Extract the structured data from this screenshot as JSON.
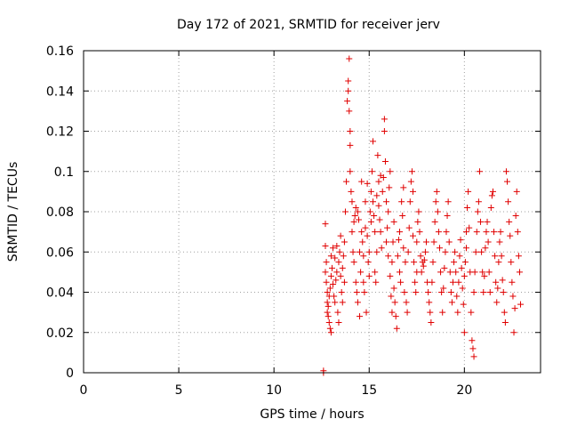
{
  "chart_data": {
    "type": "scatter",
    "title": "Day 172 of 2021, SRMTID for receiver jerv",
    "xlabel": "GPS time / hours",
    "ylabel": "SRMTID / TECUs",
    "xlim": [
      0,
      24
    ],
    "ylim": [
      0,
      0.16
    ],
    "x_ticks": [
      0,
      5,
      10,
      15,
      20
    ],
    "x_tick_labels": [
      "0",
      "5",
      "10",
      "15",
      "20"
    ],
    "y_ticks": [
      0,
      0.02,
      0.04,
      0.06,
      0.08,
      0.1,
      0.12,
      0.14,
      0.16
    ],
    "y_tick_labels": [
      "0",
      "0.02",
      "0.04",
      "0.06",
      "0.08",
      "0.1",
      "0.12",
      "0.14",
      "0.16"
    ],
    "grid": true,
    "marker": "plus",
    "color": "#e00000",
    "series": [
      {
        "points": [
          [
            12.6,
            0.0
          ],
          [
            12.6,
            0.001
          ],
          [
            12.7,
            0.074
          ],
          [
            12.7,
            0.063
          ],
          [
            12.7,
            0.05
          ],
          [
            12.75,
            0.055
          ],
          [
            12.75,
            0.045
          ],
          [
            12.8,
            0.04
          ],
          [
            12.8,
            0.035
          ],
          [
            12.8,
            0.03
          ],
          [
            12.85,
            0.028
          ],
          [
            12.85,
            0.033
          ],
          [
            12.9,
            0.025
          ],
          [
            12.9,
            0.038
          ],
          [
            12.95,
            0.022
          ],
          [
            12.95,
            0.042
          ],
          [
            13.0,
            0.02
          ],
          [
            13.0,
            0.048
          ],
          [
            13.0,
            0.058
          ],
          [
            13.05,
            0.052
          ],
          [
            13.1,
            0.062
          ],
          [
            13.1,
            0.044
          ],
          [
            13.15,
            0.038
          ],
          [
            13.2,
            0.035
          ],
          [
            13.2,
            0.057
          ],
          [
            13.25,
            0.046
          ],
          [
            13.3,
            0.05
          ],
          [
            13.3,
            0.063
          ],
          [
            13.35,
            0.03
          ],
          [
            13.4,
            0.025
          ],
          [
            13.4,
            0.055
          ],
          [
            13.45,
            0.06
          ],
          [
            13.5,
            0.068
          ],
          [
            13.5,
            0.048
          ],
          [
            13.55,
            0.04
          ],
          [
            13.6,
            0.035
          ],
          [
            13.6,
            0.052
          ],
          [
            13.65,
            0.058
          ],
          [
            13.7,
            0.045
          ],
          [
            13.7,
            0.065
          ],
          [
            13.75,
            0.08
          ],
          [
            13.8,
            0.095
          ],
          [
            13.85,
            0.135
          ],
          [
            13.9,
            0.14
          ],
          [
            13.9,
            0.145
          ],
          [
            13.95,
            0.156
          ],
          [
            13.95,
            0.13
          ],
          [
            14.0,
            0.12
          ],
          [
            14.0,
            0.113
          ],
          [
            14.0,
            0.1
          ],
          [
            14.05,
            0.09
          ],
          [
            14.1,
            0.085
          ],
          [
            14.1,
            0.07
          ],
          [
            14.15,
            0.06
          ],
          [
            14.2,
            0.055
          ],
          [
            14.2,
            0.075
          ],
          [
            14.25,
            0.078
          ],
          [
            14.3,
            0.082
          ],
          [
            14.3,
            0.045
          ],
          [
            14.35,
            0.04
          ],
          [
            14.4,
            0.035
          ],
          [
            14.4,
            0.08
          ],
          [
            14.45,
            0.076
          ],
          [
            14.5,
            0.028
          ],
          [
            14.5,
            0.06
          ],
          [
            14.55,
            0.05
          ],
          [
            14.6,
            0.07
          ],
          [
            14.6,
            0.095
          ],
          [
            14.65,
            0.065
          ],
          [
            14.7,
            0.058
          ],
          [
            14.7,
            0.045
          ],
          [
            14.75,
            0.04
          ],
          [
            14.8,
            0.085
          ],
          [
            14.8,
            0.072
          ],
          [
            14.85,
            0.03
          ],
          [
            14.9,
            0.094
          ],
          [
            14.9,
            0.068
          ],
          [
            14.95,
            0.055
          ],
          [
            15.0,
            0.06
          ],
          [
            15.0,
            0.048
          ],
          [
            15.05,
            0.08
          ],
          [
            15.1,
            0.075
          ],
          [
            15.1,
            0.09
          ],
          [
            15.15,
            0.1
          ],
          [
            15.2,
            0.115
          ],
          [
            15.2,
            0.085
          ],
          [
            15.25,
            0.078
          ],
          [
            15.3,
            0.07
          ],
          [
            15.3,
            0.05
          ],
          [
            15.35,
            0.045
          ],
          [
            15.4,
            0.088
          ],
          [
            15.4,
            0.06
          ],
          [
            15.45,
            0.108
          ],
          [
            15.5,
            0.095
          ],
          [
            15.5,
            0.083
          ],
          [
            15.55,
            0.076
          ],
          [
            15.6,
            0.07
          ],
          [
            15.6,
            0.098
          ],
          [
            15.65,
            0.062
          ],
          [
            15.7,
            0.09
          ],
          [
            15.75,
            0.097
          ],
          [
            15.8,
            0.12
          ],
          [
            15.8,
            0.126
          ],
          [
            15.85,
            0.105
          ],
          [
            15.9,
            0.085
          ],
          [
            15.9,
            0.065
          ],
          [
            15.95,
            0.072
          ],
          [
            16.0,
            0.08
          ],
          [
            16.0,
            0.058
          ],
          [
            16.05,
            0.092
          ],
          [
            16.1,
            0.1
          ],
          [
            16.1,
            0.048
          ],
          [
            16.15,
            0.038
          ],
          [
            16.2,
            0.03
          ],
          [
            16.2,
            0.055
          ],
          [
            16.25,
            0.065
          ],
          [
            16.3,
            0.075
          ],
          [
            16.3,
            0.042
          ],
          [
            16.35,
            0.035
          ],
          [
            16.4,
            0.028
          ],
          [
            16.45,
            0.022
          ],
          [
            16.5,
            0.058
          ],
          [
            16.55,
            0.066
          ],
          [
            16.6,
            0.07
          ],
          [
            16.6,
            0.05
          ],
          [
            16.65,
            0.045
          ],
          [
            16.7,
            0.085
          ],
          [
            16.75,
            0.078
          ],
          [
            16.8,
            0.092
          ],
          [
            16.8,
            0.062
          ],
          [
            16.85,
            0.04
          ],
          [
            16.9,
            0.055
          ],
          [
            16.95,
            0.035
          ],
          [
            17.0,
            0.03
          ],
          [
            17.05,
            0.06
          ],
          [
            17.1,
            0.072
          ],
          [
            17.15,
            0.085
          ],
          [
            17.2,
            0.095
          ],
          [
            17.25,
            0.1
          ],
          [
            17.3,
            0.09
          ],
          [
            17.3,
            0.068
          ],
          [
            17.35,
            0.055
          ],
          [
            17.4,
            0.045
          ],
          [
            17.45,
            0.04
          ],
          [
            17.5,
            0.05
          ],
          [
            17.5,
            0.065
          ],
          [
            17.55,
            0.075
          ],
          [
            17.6,
            0.08
          ],
          [
            17.65,
            0.07
          ],
          [
            17.7,
            0.058
          ],
          [
            17.75,
            0.05
          ],
          [
            17.8,
            0.055
          ],
          [
            17.85,
            0.053
          ],
          [
            17.9,
            0.056
          ],
          [
            17.95,
            0.06
          ],
          [
            18.0,
            0.065
          ],
          [
            18.05,
            0.045
          ],
          [
            18.1,
            0.04
          ],
          [
            18.15,
            0.035
          ],
          [
            18.2,
            0.03
          ],
          [
            18.25,
            0.025
          ],
          [
            18.3,
            0.045
          ],
          [
            18.35,
            0.055
          ],
          [
            18.4,
            0.065
          ],
          [
            18.45,
            0.075
          ],
          [
            18.5,
            0.085
          ],
          [
            18.55,
            0.09
          ],
          [
            18.6,
            0.08
          ],
          [
            18.65,
            0.07
          ],
          [
            18.7,
            0.062
          ],
          [
            18.75,
            0.05
          ],
          [
            18.8,
            0.04
          ],
          [
            18.85,
            0.03
          ],
          [
            18.9,
            0.042
          ],
          [
            18.95,
            0.052
          ],
          [
            19.0,
            0.06
          ],
          [
            19.05,
            0.07
          ],
          [
            19.1,
            0.078
          ],
          [
            19.15,
            0.085
          ],
          [
            19.2,
            0.065
          ],
          [
            19.25,
            0.05
          ],
          [
            19.3,
            0.04
          ],
          [
            19.35,
            0.035
          ],
          [
            19.4,
            0.045
          ],
          [
            19.45,
            0.055
          ],
          [
            19.5,
            0.06
          ],
          [
            19.55,
            0.05
          ],
          [
            19.6,
            0.038
          ],
          [
            19.65,
            0.03
          ],
          [
            19.7,
            0.045
          ],
          [
            19.75,
            0.058
          ],
          [
            19.8,
            0.066
          ],
          [
            19.85,
            0.052
          ],
          [
            19.9,
            0.042
          ],
          [
            19.95,
            0.034
          ],
          [
            20.0,
            0.02
          ],
          [
            20.0,
            0.048
          ],
          [
            20.05,
            0.055
          ],
          [
            20.1,
            0.062
          ],
          [
            20.1,
            0.07
          ],
          [
            20.15,
            0.082
          ],
          [
            20.2,
            0.09
          ],
          [
            20.25,
            0.072
          ],
          [
            20.3,
            0.05
          ],
          [
            20.35,
            0.03
          ],
          [
            20.4,
            0.016
          ],
          [
            20.45,
            0.012
          ],
          [
            20.5,
            0.008
          ],
          [
            20.5,
            0.04
          ],
          [
            20.55,
            0.05
          ],
          [
            20.6,
            0.06
          ],
          [
            20.65,
            0.07
          ],
          [
            20.7,
            0.08
          ],
          [
            20.75,
            0.085
          ],
          [
            20.8,
            0.1
          ],
          [
            20.85,
            0.075
          ],
          [
            20.9,
            0.06
          ],
          [
            20.95,
            0.05
          ],
          [
            21.0,
            0.04
          ],
          [
            21.05,
            0.048
          ],
          [
            21.1,
            0.062
          ],
          [
            21.15,
            0.07
          ],
          [
            21.2,
            0.075
          ],
          [
            21.25,
            0.065
          ],
          [
            21.3,
            0.05
          ],
          [
            21.35,
            0.04
          ],
          [
            21.4,
            0.082
          ],
          [
            21.45,
            0.088
          ],
          [
            21.5,
            0.09
          ],
          [
            21.55,
            0.07
          ],
          [
            21.6,
            0.058
          ],
          [
            21.65,
            0.045
          ],
          [
            21.7,
            0.035
          ],
          [
            21.75,
            0.042
          ],
          [
            21.8,
            0.055
          ],
          [
            21.85,
            0.065
          ],
          [
            21.9,
            0.07
          ],
          [
            21.95,
            0.058
          ],
          [
            22.0,
            0.046
          ],
          [
            22.05,
            0.04
          ],
          [
            22.1,
            0.03
          ],
          [
            22.15,
            0.025
          ],
          [
            22.2,
            0.1
          ],
          [
            22.25,
            0.095
          ],
          [
            22.3,
            0.085
          ],
          [
            22.35,
            0.075
          ],
          [
            22.4,
            0.068
          ],
          [
            22.45,
            0.055
          ],
          [
            22.5,
            0.045
          ],
          [
            22.55,
            0.038
          ],
          [
            22.6,
            0.02
          ],
          [
            22.65,
            0.032
          ],
          [
            22.7,
            0.078
          ],
          [
            22.75,
            0.09
          ],
          [
            22.8,
            0.07
          ],
          [
            22.85,
            0.058
          ],
          [
            22.9,
            0.05
          ],
          [
            22.95,
            0.034
          ]
        ]
      }
    ]
  }
}
